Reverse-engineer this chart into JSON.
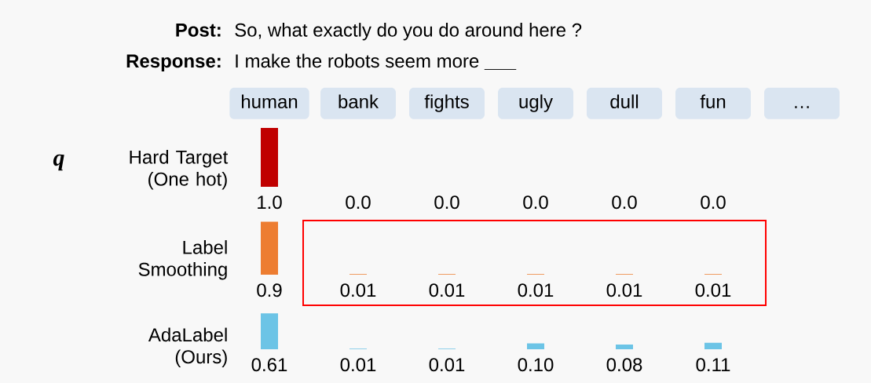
{
  "chart_data": [
    {
      "type": "bar",
      "ylabel": "Hard Target (One hot)",
      "categories": [
        "human",
        "bank",
        "fights",
        "ugly",
        "dull",
        "fun",
        "…"
      ],
      "values": [
        1.0,
        0.0,
        0.0,
        0.0,
        0.0,
        0.0,
        null
      ],
      "value_labels": [
        "1.0",
        "0.0",
        "0.0",
        "0.0",
        "0.0",
        "0.0",
        null
      ],
      "color": "#c00000",
      "tick_labels": "x",
      "annotations": [
        "Post:",
        "So, what exactly do you do around here ?",
        "Response:",
        "I make the robots seem more **___**",
        "q"
      ]
    },
    {
      "type": "bar",
      "ylabel": "Label Smoothing",
      "categories": [
        null,
        null,
        null,
        null,
        null,
        null,
        null
      ],
      "values": [
        0.9,
        0.01,
        0.01,
        0.01,
        0.01,
        0.01,
        null
      ],
      "data_labels": true,
      "color": "#ed7d31",
      "tick_labels": false
    },
    {
      "type": "bar",
      "ylabel": "AdaLabel (Ours)",
      "categories": [
        null,
        null,
        null,
        null,
        null,
        null,
        null
      ],
      "values": [
        0.61,
        0.01,
        0.01,
        0.1,
        0.08,
        0.11,
        null
      ],
      "value_labels": [
        "0.61",
        "0.01",
        "0.01",
        "0.10",
        "0.08",
        "0.11",
        null
      ],
      "color": "#6cc4e6",
      "tick_labels": false
    }
  ]
}
